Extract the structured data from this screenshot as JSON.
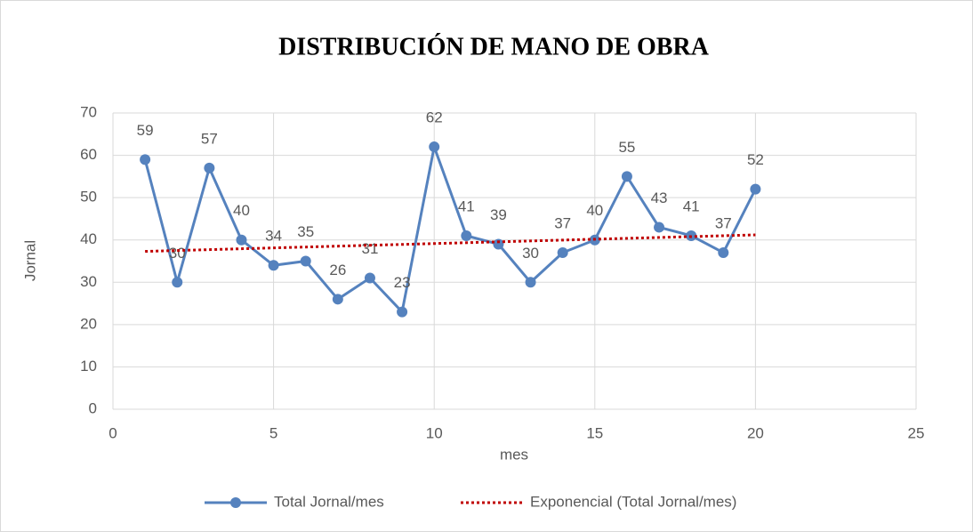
{
  "chart_data": {
    "type": "scatter-line",
    "title": "DISTRIBUCIÓN DE MANO DE OBRA",
    "x_label": "mes",
    "y_label": "Jornal",
    "xlim": [
      0,
      25
    ],
    "xticks": [
      0,
      5,
      10,
      15,
      20,
      25
    ],
    "ylim": [
      0,
      70
    ],
    "yticks": [
      0,
      10,
      20,
      30,
      40,
      50,
      60,
      70
    ],
    "grid": true,
    "legend": "bottom",
    "series": [
      {
        "name": "Total Jornal/mes",
        "color": "#5582be",
        "markers": true,
        "data_labels": true,
        "line_style": "solid",
        "x": [
          1,
          2,
          3,
          4,
          5,
          6,
          7,
          8,
          9,
          10,
          11,
          12,
          13,
          14,
          15,
          16,
          17,
          18,
          19,
          20
        ],
        "values": [
          59,
          30,
          57,
          40,
          34,
          35,
          26,
          31,
          23,
          62,
          41,
          39,
          30,
          37,
          40,
          55,
          43,
          41,
          37,
          52
        ]
      },
      {
        "name": "Exponencial (Total Jornal/mes)",
        "color": "#c00000",
        "markers": false,
        "data_labels": false,
        "line_style": "dotted",
        "x": [
          1,
          20
        ],
        "values": [
          37.3,
          41.2
        ]
      }
    ]
  }
}
